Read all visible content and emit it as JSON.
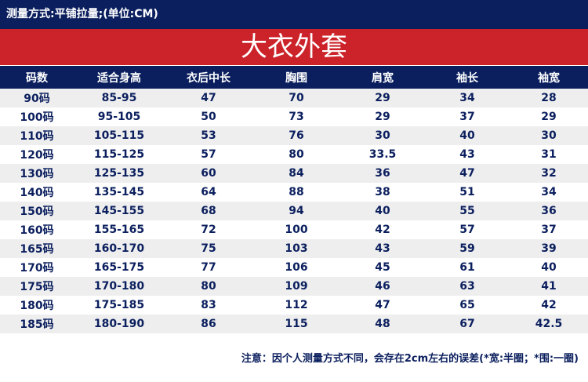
{
  "header": {
    "measure_method": "测量方式:平铺拉量;(单位:CM)",
    "title": "大衣外套"
  },
  "table": {
    "columns": [
      "码数",
      "适合身高",
      "衣后中长",
      "胸围",
      "肩宽",
      "袖长",
      "袖宽"
    ],
    "rows": [
      [
        "90码",
        "85-95",
        "47",
        "70",
        "29",
        "34",
        "28"
      ],
      [
        "100码",
        "95-105",
        "50",
        "73",
        "29",
        "37",
        "29"
      ],
      [
        "110码",
        "105-115",
        "53",
        "76",
        "30",
        "40",
        "30"
      ],
      [
        "120码",
        "115-125",
        "57",
        "80",
        "33.5",
        "43",
        "31"
      ],
      [
        "130码",
        "125-135",
        "60",
        "84",
        "36",
        "47",
        "32"
      ],
      [
        "140码",
        "135-145",
        "64",
        "88",
        "38",
        "51",
        "34"
      ],
      [
        "150码",
        "145-155",
        "68",
        "94",
        "40",
        "55",
        "36"
      ],
      [
        "160码",
        "155-165",
        "72",
        "100",
        "42",
        "57",
        "37"
      ],
      [
        "165码",
        "160-170",
        "75",
        "103",
        "43",
        "59",
        "39"
      ],
      [
        "170码",
        "165-175",
        "77",
        "106",
        "45",
        "61",
        "40"
      ],
      [
        "175码",
        "170-180",
        "80",
        "109",
        "46",
        "63",
        "41"
      ],
      [
        "180码",
        "175-185",
        "83",
        "112",
        "47",
        "65",
        "42"
      ],
      [
        "185码",
        "180-190",
        "86",
        "115",
        "48",
        "67",
        "42.5"
      ]
    ]
  },
  "note": "注意：因个人测量方式不同，会存在2cm左右的误差(*宽:半圈；*围:一圈)",
  "colors": {
    "navy": "#0b1f5e",
    "red": "#cc2229",
    "stripe": "#eeeeee"
  }
}
